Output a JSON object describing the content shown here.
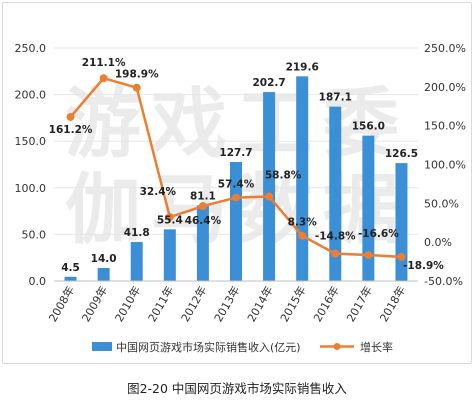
{
  "caption": "图2-20 中国网页游戏市场实际销售收入",
  "colors": {
    "bar": "#3a8fd6",
    "line": "#ed7d31",
    "grid": "#e6e6e6",
    "watermark": "#ebebeb"
  },
  "watermark_lines": [
    "游戏工委",
    "伽马数据"
  ],
  "chart_data": {
    "type": "bar",
    "title": "",
    "categories": [
      "2008年",
      "2009年",
      "2010年",
      "2011年",
      "2012年",
      "2013年",
      "2014年",
      "2015年",
      "2016年",
      "2017年",
      "2018年"
    ],
    "series": [
      {
        "name": "中国网页游戏市场实际销售收入(亿元)",
        "type": "bar",
        "axis": "left",
        "values": [
          4.5,
          14.0,
          41.8,
          55.4,
          81.1,
          127.7,
          202.7,
          219.6,
          187.1,
          156.0,
          126.5
        ],
        "labels": [
          "4.5",
          "14.0",
          "41.8",
          "55.4",
          "81.1",
          "127.7",
          "202.7",
          "219.6",
          "187.1",
          "156.0",
          "126.5"
        ]
      },
      {
        "name": "增长率",
        "type": "line",
        "axis": "right",
        "values": [
          161.2,
          211.1,
          198.9,
          32.4,
          46.4,
          57.4,
          58.8,
          8.3,
          -14.8,
          -16.6,
          -18.9
        ],
        "labels": [
          "161.2%",
          "211.1%",
          "198.9%",
          "32.4%",
          "46.4%",
          "57.4%",
          "58.8%",
          "8.3%",
          "-14.8%",
          "-16.6%",
          "-18.9%"
        ]
      }
    ],
    "y_left": {
      "ylim": [
        0,
        250
      ],
      "ticks": [
        "0.0",
        "50.0",
        "100.0",
        "150.0",
        "200.0",
        "250.0"
      ]
    },
    "y_right": {
      "ylim": [
        -50,
        250
      ],
      "ticks": [
        "-50.0%",
        "0.0%",
        "50.0%",
        "100.0%",
        "150.0%",
        "200.0%",
        "250.0%"
      ]
    },
    "grid": true,
    "legend": "bottom"
  }
}
